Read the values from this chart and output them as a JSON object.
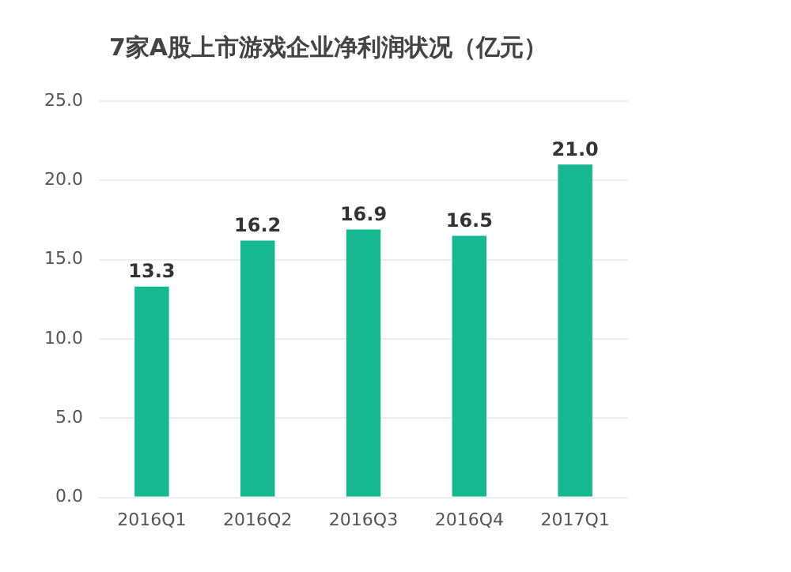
{
  "chart_data": {
    "type": "bar",
    "title": "7家A股上市游戏企业净利润状况（亿元）",
    "categories": [
      "2016Q1",
      "2016Q2",
      "2016Q3",
      "2016Q4",
      "2017Q1"
    ],
    "values": [
      13.3,
      16.2,
      16.9,
      16.5,
      21.0
    ],
    "color": "#17b890",
    "ylim": [
      0,
      25
    ],
    "yticks": [
      {
        "value": 0,
        "label": "0.0"
      },
      {
        "value": 5,
        "label": "5.0"
      },
      {
        "value": 10,
        "label": "10.0"
      },
      {
        "value": 15,
        "label": "15.0"
      },
      {
        "value": 20,
        "label": "20.0"
      },
      {
        "value": 25,
        "label": "25.0"
      }
    ],
    "grid": "y",
    "value_labels": [
      "13.3",
      "16.2",
      "16.9",
      "16.5",
      "21.0"
    ],
    "legend": false
  }
}
